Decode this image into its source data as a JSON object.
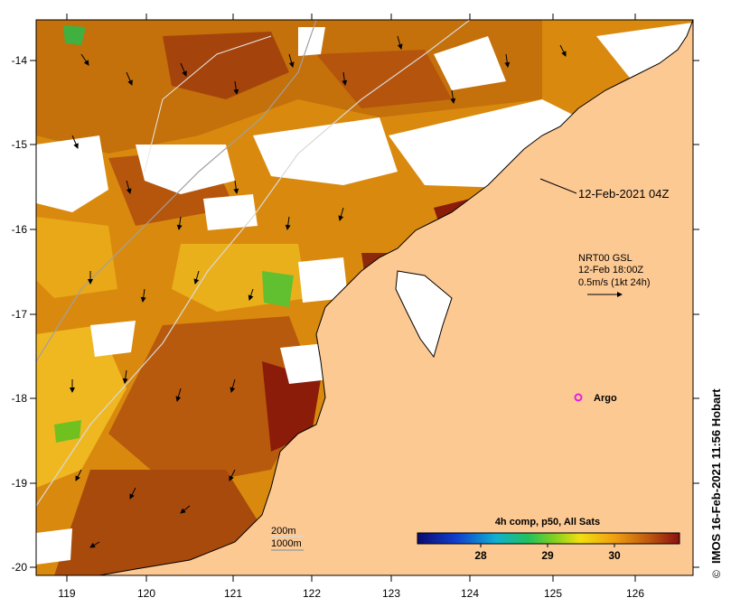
{
  "map": {
    "title_timestamp": "12-Feb-2021 04Z",
    "current_overlay": {
      "product": "NRT00 GSL",
      "time": "12-Feb 18:00Z",
      "scale": "0.5m/s (1kt 24h)"
    },
    "argo_label": "Argo",
    "depth_legend": {
      "contour_1": "200m",
      "contour_2": "1000m"
    },
    "colorbar": {
      "title": "4h comp, p50, All Sats",
      "ticks": [
        "28",
        "29",
        "30"
      ]
    },
    "credit": "IMOS 16-Feb-2021 11:56 Hobart",
    "copyright_symbol": "©",
    "axes": {
      "lat_labels": [
        "-14",
        "-15",
        "-16",
        "-17",
        "-18",
        "-19",
        "-20"
      ],
      "lon_labels": [
        "119",
        "120",
        "121",
        "122",
        "123",
        "124",
        "125",
        "126"
      ]
    },
    "colors": {
      "land": "#fdc993",
      "cloud": "#ffffff",
      "sst_warm": "#b05a0a",
      "sst_mid": "#de9412",
      "sst_hot": "#8b1a0a",
      "argo": "#e020e0"
    }
  }
}
